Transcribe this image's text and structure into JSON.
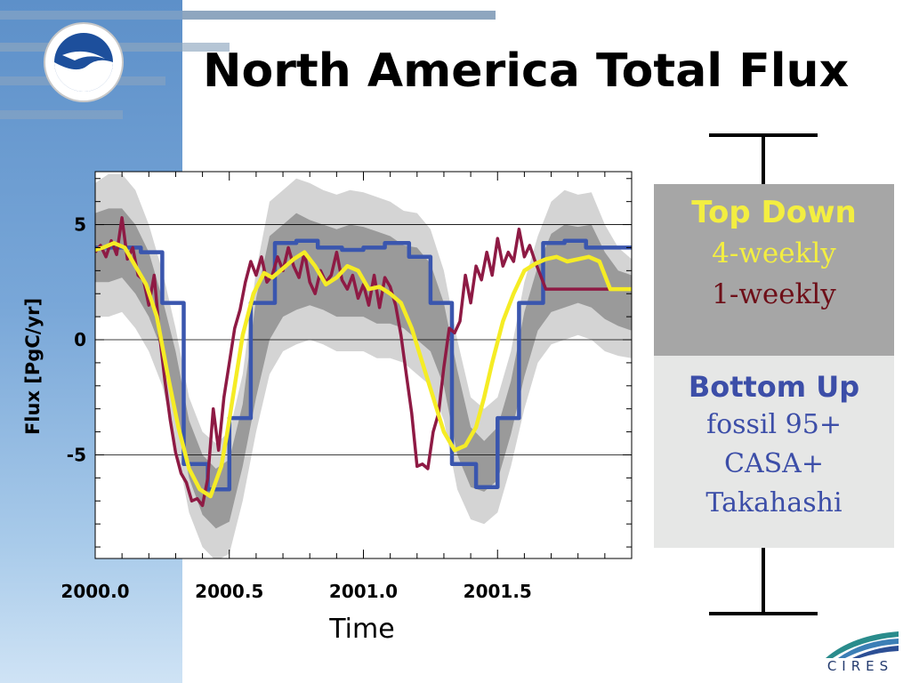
{
  "slide": {
    "title": "North America Total Flux",
    "logos": {
      "left": "NOAA",
      "right": "CIRES"
    },
    "colors": {
      "sidebar": "#6b9bd0",
      "stripe": "#8ea6bf"
    }
  },
  "legend": {
    "top_down": {
      "title": "Top Down",
      "items": [
        "4-weekly",
        "1-weekly"
      ],
      "title_color": "#f3ee41",
      "item_colors": [
        "#f3ee41",
        "#6e0f18"
      ]
    },
    "bottom_up": {
      "title": "Bottom Up",
      "lines": [
        "fossil 95+",
        "CASA+",
        "Takahashi"
      ],
      "color": "#3c4ea8"
    }
  },
  "chart_data": {
    "type": "line",
    "xlabel": "Time",
    "ylabel": "Flux [PgC/yr]",
    "xlim": [
      2000.0,
      2002.0
    ],
    "ylim": [
      -9.5,
      7.3
    ],
    "xticks": [
      2000.0,
      2000.5,
      2001.0,
      2001.5
    ],
    "xtick_labels": [
      "2000.0",
      "2000.5",
      "2001.0",
      "2001.5"
    ],
    "yticks": [
      5,
      0,
      -5
    ],
    "ytick_labels": [
      "5",
      "0",
      "-5"
    ],
    "grid": "horizontal at major y ticks",
    "series": [
      {
        "name": "4-weekly",
        "color": "#f5ec25",
        "x": [
          2000.0,
          2000.03,
          2000.07,
          2000.11,
          2000.15,
          2000.19,
          2000.23,
          2000.27,
          2000.31,
          2000.35,
          2000.39,
          2000.43,
          2000.47,
          2000.49,
          2000.52,
          2000.55,
          2000.59,
          2000.63,
          2000.66,
          2000.7,
          2000.74,
          2000.78,
          2000.82,
          2000.86,
          2000.9,
          2000.94,
          2000.98,
          2001.02,
          2001.06,
          2001.1,
          2001.14,
          2001.18,
          2001.22,
          2001.26,
          2001.3,
          2001.34,
          2001.38,
          2001.42,
          2001.45,
          2001.48,
          2001.52,
          2001.56,
          2001.6,
          2001.64,
          2001.68,
          2001.72,
          2001.76,
          2001.8,
          2001.84,
          2001.88,
          2001.92,
          2001.96,
          2002.0
        ],
        "y": [
          3.9,
          4.0,
          4.2,
          4.0,
          3.2,
          2.4,
          1.0,
          -1.5,
          -3.8,
          -5.6,
          -6.5,
          -6.8,
          -5.5,
          -4.2,
          -2.0,
          0.2,
          2.0,
          2.9,
          2.7,
          3.1,
          3.5,
          3.8,
          3.2,
          2.4,
          2.7,
          3.2,
          3.0,
          2.2,
          2.3,
          2.0,
          1.6,
          0.5,
          -1.0,
          -2.5,
          -4.0,
          -4.8,
          -4.6,
          -3.8,
          -2.5,
          -1.0,
          0.8,
          2.0,
          3.0,
          3.3,
          3.5,
          3.6,
          3.4,
          3.5,
          3.6,
          3.4,
          2.2,
          2.2,
          2.2
        ]
      },
      {
        "name": "1-weekly",
        "color": "#8e1a44",
        "x": [
          2000.0,
          2000.02,
          2000.04,
          2000.06,
          2000.08,
          2000.1,
          2000.12,
          2000.14,
          2000.16,
          2000.18,
          2000.2,
          2000.22,
          2000.24,
          2000.26,
          2000.28,
          2000.3,
          2000.32,
          2000.34,
          2000.36,
          2000.38,
          2000.4,
          2000.42,
          2000.44,
          2000.46,
          2000.48,
          2000.5,
          2000.52,
          2000.54,
          2000.56,
          2000.58,
          2000.6,
          2000.62,
          2000.64,
          2000.66,
          2000.68,
          2000.7,
          2000.72,
          2000.74,
          2000.76,
          2000.78,
          2000.8,
          2000.82,
          2000.84,
          2000.86,
          2000.88,
          2000.9,
          2000.92,
          2000.94,
          2000.96,
          2000.98,
          2001.0,
          2001.02,
          2001.04,
          2001.06,
          2001.08,
          2001.1,
          2001.12,
          2001.14,
          2001.16,
          2001.18,
          2001.2,
          2001.22,
          2001.24,
          2001.26,
          2001.28,
          2001.3,
          2001.32,
          2001.34,
          2001.36,
          2001.38,
          2001.4,
          2001.42,
          2001.44,
          2001.46,
          2001.48,
          2001.5,
          2001.52,
          2001.54,
          2001.56,
          2001.58,
          2001.6,
          2001.62,
          2001.64,
          2001.66,
          2001.68,
          2001.7,
          2001.72,
          2001.74,
          2001.76,
          2001.78,
          2001.8,
          2001.82,
          2001.84,
          2001.86,
          2001.88,
          2001.9,
          2001.92,
          2001.94,
          2001.96,
          2001.98,
          2002.0
        ],
        "y": [
          3.8,
          4.1,
          3.6,
          4.3,
          3.7,
          5.3,
          3.5,
          4.0,
          2.8,
          2.6,
          1.5,
          2.8,
          0.2,
          -1.8,
          -3.5,
          -4.9,
          -5.8,
          -6.2,
          -7.0,
          -6.9,
          -7.2,
          -6.0,
          -3.0,
          -4.8,
          -2.5,
          -1.0,
          0.5,
          1.3,
          2.5,
          3.4,
          2.8,
          3.6,
          2.5,
          2.8,
          3.6,
          3.0,
          4.0,
          3.2,
          2.7,
          3.8,
          2.5,
          2.0,
          3.0,
          2.5,
          2.8,
          3.8,
          2.6,
          2.2,
          2.8,
          1.8,
          2.4,
          1.5,
          2.8,
          1.4,
          2.7,
          2.3,
          1.5,
          0.2,
          -1.5,
          -3.2,
          -5.5,
          -5.4,
          -5.6,
          -4.0,
          -3.2,
          -1.2,
          0.5,
          0.3,
          0.8,
          2.8,
          1.6,
          3.2,
          2.6,
          3.8,
          2.8,
          4.4,
          3.2,
          3.8,
          3.4,
          4.8,
          3.6,
          4.1,
          3.4,
          2.8,
          2.2,
          2.2,
          2.2,
          2.2,
          2.2,
          2.2,
          2.2,
          2.2,
          2.2,
          2.2,
          2.2,
          2.2,
          2.2,
          2.2,
          2.2,
          2.2,
          2.2
        ]
      },
      {
        "name": "Bottom Up",
        "color": "#3a56ae",
        "x": [
          2000.0,
          2000.08,
          2000.08,
          2000.17,
          2000.17,
          2000.25,
          2000.25,
          2000.33,
          2000.33,
          2000.42,
          2000.42,
          2000.5,
          2000.5,
          2000.58,
          2000.58,
          2000.67,
          2000.67,
          2000.75,
          2000.75,
          2000.83,
          2000.83,
          2000.92,
          2000.92,
          2001.0,
          2001.0,
          2001.08,
          2001.08,
          2001.17,
          2001.17,
          2001.25,
          2001.25,
          2001.33,
          2001.33,
          2001.42,
          2001.42,
          2001.5,
          2001.5,
          2001.58,
          2001.58,
          2001.67,
          2001.67,
          2001.75,
          2001.75,
          2001.83,
          2001.83,
          2001.92,
          2001.92,
          2002.0
        ],
        "y": [
          4.0,
          4.0,
          4.0,
          4.0,
          3.8,
          3.8,
          1.6,
          1.6,
          -5.4,
          -5.4,
          -6.5,
          -6.5,
          -3.4,
          -3.4,
          1.6,
          1.6,
          4.2,
          4.2,
          4.3,
          4.3,
          4.0,
          4.0,
          3.9,
          3.9,
          4.0,
          4.0,
          4.2,
          4.2,
          3.6,
          3.6,
          1.6,
          1.6,
          -5.4,
          -5.4,
          -6.4,
          -6.4,
          -3.4,
          -3.4,
          1.6,
          1.6,
          4.2,
          4.2,
          4.3,
          4.3,
          4.0,
          4.0,
          4.0,
          4.0
        ]
      }
    ],
    "uncertainty_bands": [
      {
        "name": "outer",
        "color": "#d4d4d4",
        "x": [
          2000.0,
          2000.05,
          2000.1,
          2000.15,
          2000.2,
          2000.25,
          2000.3,
          2000.35,
          2000.4,
          2000.45,
          2000.5,
          2000.55,
          2000.6,
          2000.65,
          2000.7,
          2000.75,
          2000.8,
          2000.85,
          2000.9,
          2000.95,
          2001.0,
          2001.05,
          2001.1,
          2001.15,
          2001.2,
          2001.25,
          2001.3,
          2001.35,
          2001.4,
          2001.45,
          2001.5,
          2001.55,
          2001.6,
          2001.65,
          2001.7,
          2001.75,
          2001.8,
          2001.85,
          2001.9,
          2001.95,
          2002.0
        ],
        "upper": [
          6.8,
          7.2,
          7.2,
          6.5,
          5.0,
          3.0,
          0.5,
          -2.5,
          -4.0,
          -4.5,
          -4.0,
          -1.5,
          3.0,
          6.0,
          6.5,
          7.0,
          6.8,
          6.5,
          6.3,
          6.5,
          6.4,
          6.2,
          6.0,
          5.6,
          5.5,
          4.8,
          3.0,
          0.0,
          -2.5,
          -3.0,
          -2.5,
          -0.5,
          2.5,
          4.5,
          6.0,
          6.5,
          6.3,
          6.4,
          5.0,
          4.0,
          3.5
        ],
        "lower": [
          1.0,
          1.0,
          1.2,
          0.5,
          -0.5,
          -2.0,
          -4.5,
          -7.5,
          -9.0,
          -9.6,
          -9.3,
          -7.0,
          -4.0,
          -1.5,
          -0.5,
          -0.2,
          0.0,
          -0.2,
          -0.5,
          -0.5,
          -0.5,
          -0.8,
          -0.8,
          -1.0,
          -1.5,
          -2.0,
          -3.5,
          -6.5,
          -7.8,
          -8.0,
          -7.5,
          -5.5,
          -3.0,
          -1.0,
          -0.2,
          0.0,
          0.2,
          0.0,
          -0.5,
          -0.7,
          -0.8
        ]
      },
      {
        "name": "inner",
        "color": "#9a9a9a",
        "x": [
          2000.0,
          2000.05,
          2000.1,
          2000.15,
          2000.2,
          2000.25,
          2000.3,
          2000.35,
          2000.4,
          2000.45,
          2000.5,
          2000.55,
          2000.6,
          2000.65,
          2000.7,
          2000.75,
          2000.8,
          2000.85,
          2000.9,
          2000.95,
          2001.0,
          2001.05,
          2001.1,
          2001.15,
          2001.2,
          2001.25,
          2001.3,
          2001.35,
          2001.4,
          2001.45,
          2001.5,
          2001.55,
          2001.6,
          2001.65,
          2001.7,
          2001.75,
          2001.8,
          2001.85,
          2001.9,
          2001.95,
          2002.0
        ],
        "upper": [
          5.5,
          5.7,
          5.7,
          5.0,
          3.8,
          1.8,
          -0.5,
          -3.5,
          -5.0,
          -5.6,
          -5.2,
          -2.8,
          1.8,
          4.5,
          5.0,
          5.5,
          5.2,
          5.0,
          4.8,
          5.0,
          4.9,
          4.7,
          4.5,
          4.1,
          4.0,
          3.3,
          1.6,
          -1.3,
          -3.8,
          -4.4,
          -3.8,
          -1.8,
          1.2,
          3.2,
          4.6,
          5.0,
          4.9,
          5.0,
          3.8,
          3.0,
          2.8
        ],
        "lower": [
          2.5,
          2.5,
          2.7,
          2.0,
          1.0,
          -0.5,
          -3.0,
          -6.0,
          -7.6,
          -8.2,
          -7.9,
          -5.5,
          -2.5,
          0.0,
          1.0,
          1.3,
          1.5,
          1.3,
          1.0,
          1.0,
          1.0,
          0.7,
          0.7,
          0.5,
          0.0,
          -0.5,
          -2.0,
          -5.0,
          -6.4,
          -6.6,
          -6.1,
          -4.1,
          -1.6,
          0.4,
          1.2,
          1.4,
          1.6,
          1.4,
          0.9,
          0.6,
          0.4
        ]
      }
    ]
  }
}
